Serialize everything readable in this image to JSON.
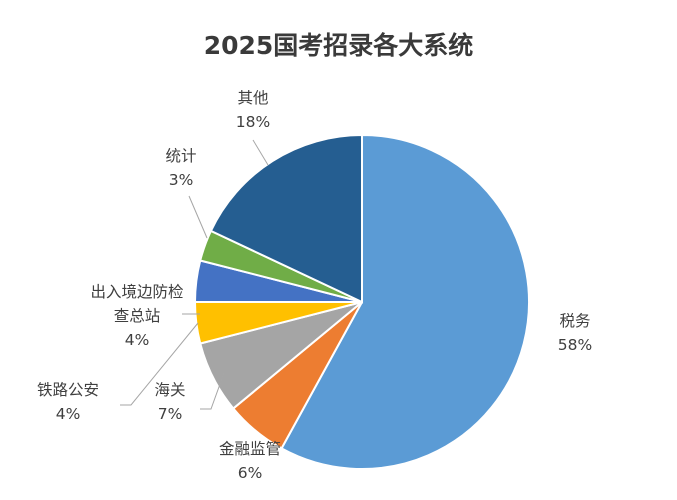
{
  "chart_data": {
    "type": "pie",
    "title": "2025国考招录各大系统",
    "slices": [
      {
        "name": "税务",
        "value": 58,
        "label": "58%",
        "color": "#5b9bd5"
      },
      {
        "name": "金融监管",
        "value": 6,
        "label": "6%",
        "color": "#ed7d31"
      },
      {
        "name": "海关",
        "value": 7,
        "label": "7%",
        "color": "#a5a5a5"
      },
      {
        "name": "铁路公安",
        "value": 4,
        "label": "4%",
        "color": "#ffc000"
      },
      {
        "name": "出入境边防检查总站",
        "value": 4,
        "label": "4%",
        "color": "#4472c4"
      },
      {
        "name": "统计",
        "value": 3,
        "label": "3%",
        "color": "#70ad47"
      },
      {
        "name": "其他",
        "value": 18,
        "label": "18%",
        "color": "#255e91"
      }
    ],
    "legend": "none"
  }
}
